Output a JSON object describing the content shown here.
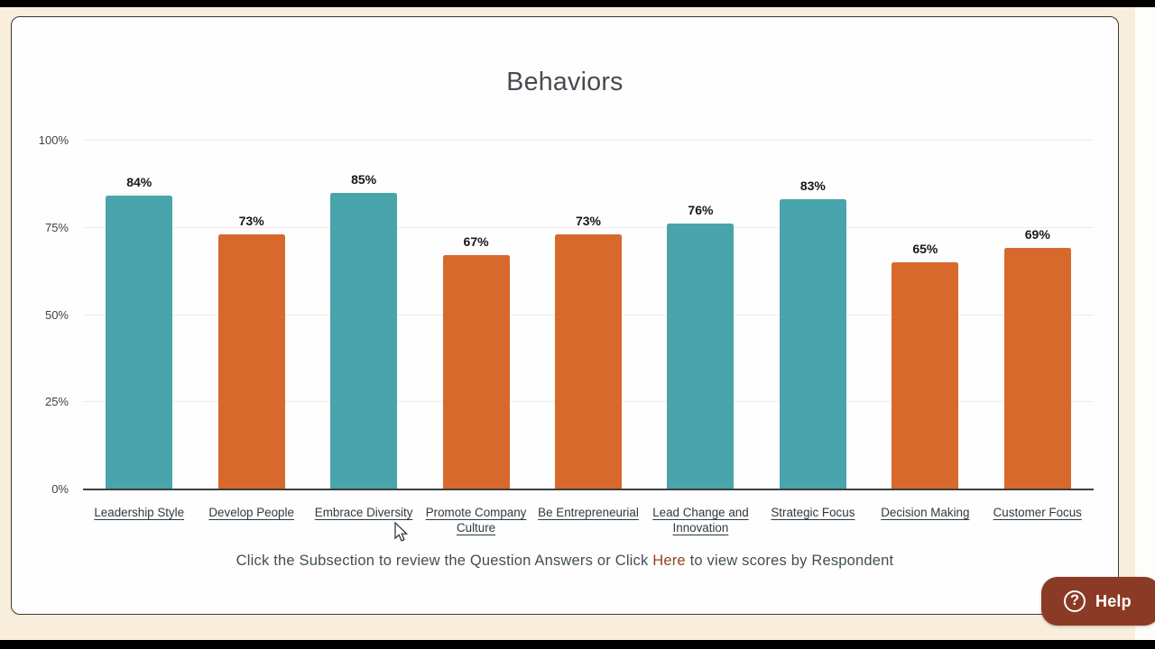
{
  "chart_data": {
    "type": "bar",
    "title": "Behaviors",
    "categories": [
      "Leadership Style",
      "Develop People",
      "Embrace Diversity",
      "Promote Company Culture",
      "Be Entrepreneurial",
      "Lead Change and Innovation",
      "Strategic Focus",
      "Decision Making",
      "Customer Focus"
    ],
    "category_lines": [
      [
        "Leadership Style"
      ],
      [
        "Develop People"
      ],
      [
        "Embrace Diversity"
      ],
      [
        "Promote Company",
        "Culture"
      ],
      [
        "Be Entrepreneurial"
      ],
      [
        "Lead Change and",
        "Innovation"
      ],
      [
        "Strategic Focus"
      ],
      [
        "Decision Making"
      ],
      [
        "Customer Focus"
      ]
    ],
    "values": [
      84,
      73,
      85,
      67,
      73,
      76,
      83,
      65,
      69
    ],
    "value_labels": [
      "84%",
      "73%",
      "85%",
      "67%",
      "73%",
      "76%",
      "83%",
      "65%",
      "69%"
    ],
    "bar_colors": [
      "#4aa4ab",
      "#d7692d",
      "#4aa4ab",
      "#d7692d",
      "#d7692d",
      "#4aa4ab",
      "#4aa4ab",
      "#d7692d",
      "#d7692d"
    ],
    "y_ticks": [
      {
        "label": "100%",
        "value": 100
      },
      {
        "label": "75%",
        "value": 75
      },
      {
        "label": "50%",
        "value": 50
      },
      {
        "label": "25%",
        "value": 25
      },
      {
        "label": "0%",
        "value": 0
      }
    ],
    "ylim": [
      0,
      100
    ],
    "grid": true,
    "legend": "none",
    "xlabel": "",
    "ylabel": "",
    "colors": {
      "teal": "#4aa4ab",
      "orange": "#d7692d",
      "gridline": "#ececec",
      "axis_line": "#3b3f42",
      "category_link": "#2e3a42"
    }
  },
  "footer": {
    "text_before": "Click the Subsection to review the Question Answers or Click ",
    "link_text": "Here",
    "text_after": " to view scores by Respondent",
    "link_color": "#96431f"
  },
  "help_button": {
    "label": "Help",
    "icon": "question-mark-circle-icon",
    "icon_glyph": "?",
    "color": "#8b3b25"
  },
  "page": {
    "background_color": "#f8eedb",
    "card_color": "#fefefe",
    "letterbox_color": "#000000"
  }
}
